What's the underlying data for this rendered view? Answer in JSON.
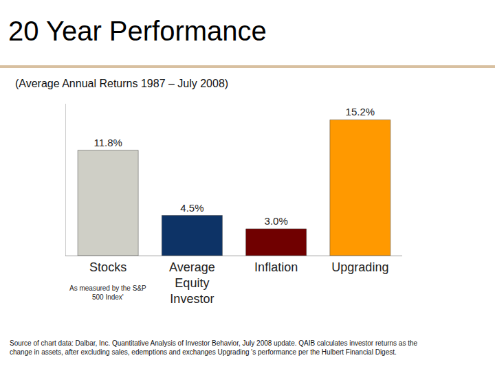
{
  "chart_data": {
    "type": "bar",
    "title": "20 Year Performance",
    "subtitle": "(Average Annual Returns 1987 – July 2008)",
    "categories": [
      "Stocks",
      "Average Equity Investor",
      "Inflation",
      "Upgrading"
    ],
    "values": [
      11.8,
      4.5,
      3.0,
      15.2
    ],
    "value_labels": [
      "11.8%",
      "4.5%",
      "3.0%",
      "15.2%"
    ],
    "colors": [
      "#cfcfc6",
      "#0d3366",
      "#700000",
      "#ff9900"
    ],
    "ylim": [
      0,
      17
    ],
    "yticks": [],
    "grid": false,
    "tick_labels": "x",
    "data_labels": true,
    "annotations": [
      {
        "category": "Stocks",
        "text": "As measured by the S&P 500 Index'"
      }
    ],
    "source": "Source of chart data: Dalbar, Inc. Quantitative Analysis of Investor Behavior, July 2008 update. QAIB calculates investor returns as the change in assets, after excluding sales, edemptions and exchanges Upgrading 's performance per the Hulbert Financial Digest."
  }
}
